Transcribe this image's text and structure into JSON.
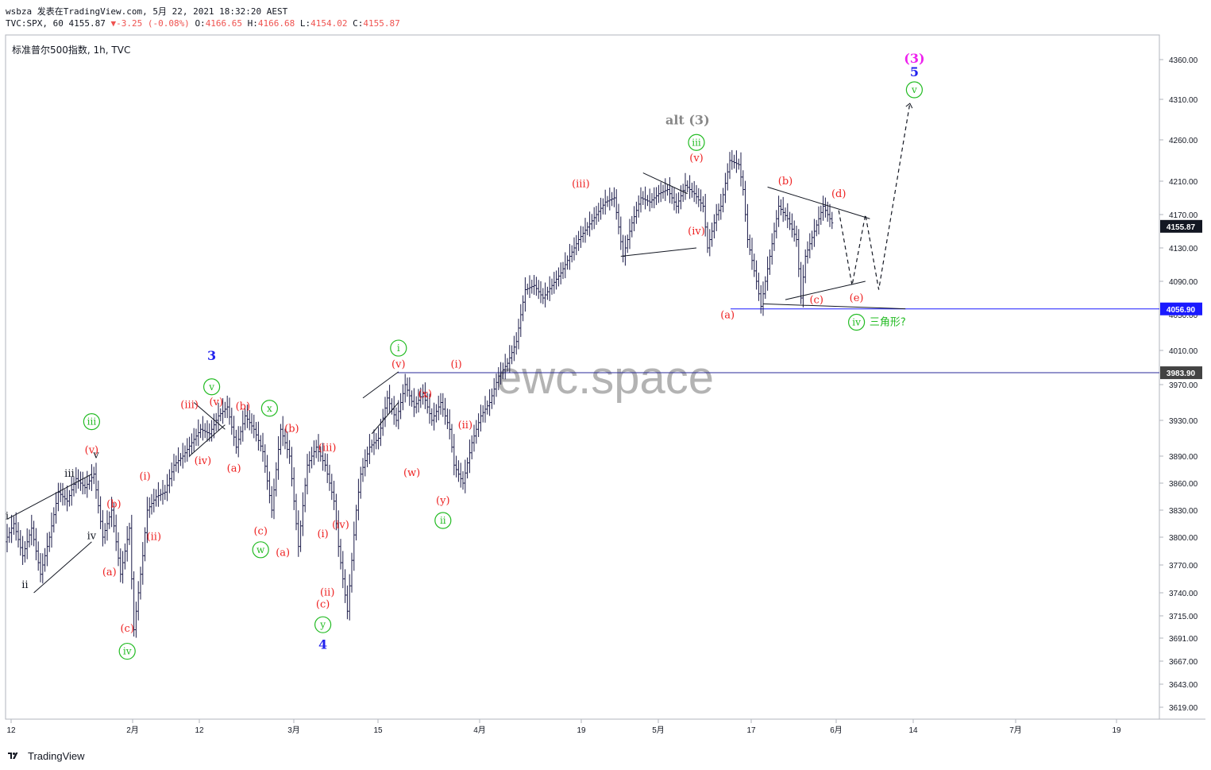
{
  "header": {
    "author": "wsbza",
    "published": "发表在TradingView.com, 5月 22, 2021 18:32:20 AEST",
    "symbol": "TVC:SPX, 60",
    "last": "4155.87",
    "change": "-3.25 (-0.08%)",
    "o_label": "O:",
    "o": "4166.65",
    "h_label": "H:",
    "h": "4166.68",
    "l_label": "L:",
    "l": "4154.02",
    "c_label": "C:",
    "c": "4155.87"
  },
  "legend": {
    "title": "标准普尔500指数, 1h, TVC"
  },
  "watermark": "ewc.space",
  "footer": {
    "brand": "TradingView"
  },
  "chart_data": {
    "type": "line",
    "ohlc_style": "bar",
    "y_axis": {
      "position": "right",
      "ylim": [
        3600,
        4375
      ],
      "ticks": [
        4360,
        4310,
        4260,
        4210,
        4170,
        4130,
        4090,
        4050,
        4010,
        3970,
        3930,
        3890,
        3860,
        3830,
        3800,
        3770,
        3740,
        3715,
        3691,
        3667,
        3643,
        3619
      ],
      "tick_labels": [
        "4360.00",
        "4310.00",
        "4260.00",
        "4210.00",
        "4170.00",
        "4130.00",
        "4090.00",
        "4050.00",
        "4010.00",
        "3970.00",
        "3930.00",
        "3890.00",
        "3860.00",
        "3830.00",
        "3800.00",
        "3770.00",
        "3740.00",
        "3715.00",
        "3691.00",
        "3667.00",
        "3643.00",
        "3619.00"
      ]
    },
    "x_axis": {
      "ticks": [
        "12",
        "2月",
        "12",
        "3月",
        "15",
        "4月",
        "19",
        "5月",
        "17",
        "6月",
        "14",
        "7月",
        "19"
      ]
    },
    "price_tags": [
      {
        "value": 4155.87,
        "label": "4155.87",
        "color": "#131722"
      },
      {
        "value": 4056.9,
        "label": "4056.90",
        "color": "#1a1aff"
      },
      {
        "value": 3983.9,
        "label": "3983.90",
        "color": "#434343"
      }
    ],
    "horizontal_lines": [
      {
        "value": 4056.9,
        "color": "#1a1aff"
      },
      {
        "value": 3983.9,
        "color": "#2a2a9a"
      }
    ],
    "price_path": [
      [
        0,
        3795
      ],
      [
        2,
        3815
      ],
      [
        4,
        3780
      ],
      [
        6,
        3810
      ],
      [
        8,
        3760
      ],
      [
        10,
        3800
      ],
      [
        12,
        3850
      ],
      [
        14,
        3840
      ],
      [
        16,
        3865
      ],
      [
        18,
        3855
      ],
      [
        20,
        3870
      ],
      [
        22,
        3800
      ],
      [
        24,
        3830
      ],
      [
        26,
        3760
      ],
      [
        28,
        3810
      ],
      [
        29,
        3700
      ],
      [
        31,
        3780
      ],
      [
        32,
        3830
      ],
      [
        34,
        3845
      ],
      [
        36,
        3850
      ],
      [
        38,
        3880
      ],
      [
        40,
        3890
      ],
      [
        42,
        3905
      ],
      [
        44,
        3920
      ],
      [
        46,
        3915
      ],
      [
        48,
        3935
      ],
      [
        50,
        3945
      ],
      [
        52,
        3900
      ],
      [
        54,
        3935
      ],
      [
        56,
        3920
      ],
      [
        58,
        3895
      ],
      [
        60,
        3830
      ],
      [
        62,
        3920
      ],
      [
        64,
        3890
      ],
      [
        66,
        3790
      ],
      [
        68,
        3880
      ],
      [
        70,
        3900
      ],
      [
        72,
        3880
      ],
      [
        74,
        3840
      ],
      [
        75,
        3790
      ],
      [
        77,
        3720
      ],
      [
        79,
        3830
      ],
      [
        80,
        3870
      ],
      [
        82,
        3900
      ],
      [
        84,
        3910
      ],
      [
        86,
        3955
      ],
      [
        88,
        3930
      ],
      [
        90,
        3970
      ],
      [
        92,
        3945
      ],
      [
        94,
        3960
      ],
      [
        96,
        3930
      ],
      [
        98,
        3950
      ],
      [
        100,
        3920
      ],
      [
        101,
        3880
      ],
      [
        103,
        3860
      ],
      [
        105,
        3905
      ],
      [
        107,
        3935
      ],
      [
        109,
        3950
      ],
      [
        111,
        3980
      ],
      [
        113,
        3995
      ],
      [
        115,
        4020
      ],
      [
        117,
        4080
      ],
      [
        119,
        4085
      ],
      [
        121,
        4070
      ],
      [
        123,
        4085
      ],
      [
        125,
        4100
      ],
      [
        127,
        4120
      ],
      [
        129,
        4140
      ],
      [
        131,
        4155
      ],
      [
        133,
        4170
      ],
      [
        135,
        4185
      ],
      [
        137,
        4190
      ],
      [
        139,
        4120
      ],
      [
        141,
        4160
      ],
      [
        143,
        4190
      ],
      [
        145,
        4185
      ],
      [
        147,
        4195
      ],
      [
        149,
        4200
      ],
      [
        151,
        4180
      ],
      [
        153,
        4205
      ],
      [
        155,
        4195
      ],
      [
        157,
        4180
      ],
      [
        158,
        4130
      ],
      [
        160,
        4170
      ],
      [
        161,
        4180
      ],
      [
        163,
        4235
      ],
      [
        165,
        4230
      ],
      [
        166,
        4200
      ],
      [
        167,
        4140
      ],
      [
        169,
        4090
      ],
      [
        170,
        4060
      ],
      [
        172,
        4120
      ],
      [
        174,
        4180
      ],
      [
        176,
        4165
      ],
      [
        178,
        4140
      ],
      [
        179,
        4070
      ],
      [
        180,
        4120
      ],
      [
        182,
        4150
      ],
      [
        184,
        4180
      ],
      [
        186,
        4160
      ]
    ],
    "projection_path": [
      [
        187,
        4175
      ],
      [
        190,
        4085
      ],
      [
        193,
        4170
      ],
      [
        196,
        4080
      ],
      [
        203,
        4305
      ]
    ],
    "wave_labels": [
      {
        "t": 0,
        "v": 3820,
        "text": "i",
        "color": "#131722"
      },
      {
        "t": 4,
        "v": 3745,
        "text": "ii",
        "color": "#131722"
      },
      {
        "t": 14,
        "v": 3867,
        "text": "iii",
        "color": "#131722"
      },
      {
        "t": 19,
        "v": 3798,
        "text": "iv",
        "color": "#131722"
      },
      {
        "t": 20,
        "v": 3888,
        "text": "v",
        "color": "#131722"
      },
      {
        "t": 19,
        "v": 3925,
        "text": "iii",
        "color": "#22bb22",
        "circled": true
      },
      {
        "t": 19,
        "v": 3893,
        "text": "(v)",
        "color": "#ee2222"
      },
      {
        "t": 24,
        "v": 3833,
        "text": "(b)",
        "color": "#ee2222"
      },
      {
        "t": 23,
        "v": 3759,
        "text": "(a)",
        "color": "#ee2222"
      },
      {
        "t": 27,
        "v": 3698,
        "text": "(c)",
        "color": "#ee2222"
      },
      {
        "t": 27,
        "v": 3674,
        "text": "iv",
        "color": "#22bb22",
        "circled": true
      },
      {
        "t": 31,
        "v": 3864,
        "text": "(i)",
        "color": "#ee2222"
      },
      {
        "t": 33,
        "v": 3797,
        "text": "(ii)",
        "color": "#ee2222"
      },
      {
        "t": 41,
        "v": 3944,
        "text": "(iii)",
        "color": "#ee2222"
      },
      {
        "t": 44,
        "v": 3881,
        "text": "(iv)",
        "color": "#ee2222"
      },
      {
        "t": 46,
        "v": 3999,
        "text": "3",
        "color": "#2222ee"
      },
      {
        "t": 46,
        "v": 3964,
        "text": "v",
        "color": "#22bb22",
        "circled": true
      },
      {
        "t": 47,
        "v": 3947,
        "text": "(v)",
        "color": "#ee2222"
      },
      {
        "t": 53,
        "v": 3942,
        "text": "(b)",
        "color": "#ee2222"
      },
      {
        "t": 51,
        "v": 3873,
        "text": "(a)",
        "color": "#ee2222"
      },
      {
        "t": 59,
        "v": 3940,
        "text": "x",
        "color": "#22bb22",
        "circled": true
      },
      {
        "t": 57,
        "v": 3803,
        "text": "(c)",
        "color": "#ee2222"
      },
      {
        "t": 57,
        "v": 3783,
        "text": "w",
        "color": "#22bb22",
        "circled": true
      },
      {
        "t": 64,
        "v": 3917,
        "text": "(b)",
        "color": "#ee2222"
      },
      {
        "t": 62,
        "v": 3780,
        "text": "(a)",
        "color": "#ee2222"
      },
      {
        "t": 72,
        "v": 3896,
        "text": "(iii)",
        "color": "#ee2222"
      },
      {
        "t": 75,
        "v": 3810,
        "text": "(iv)",
        "color": "#ee2222"
      },
      {
        "t": 71,
        "v": 3800,
        "text": "(i)",
        "color": "#ee2222"
      },
      {
        "t": 72,
        "v": 3737,
        "text": "(ii)",
        "color": "#ee2222"
      },
      {
        "t": 71,
        "v": 3724,
        "text": "(c)",
        "color": "#ee2222"
      },
      {
        "t": 71,
        "v": 3702,
        "text": "y",
        "color": "#22bb22",
        "circled": true
      },
      {
        "t": 71,
        "v": 3680,
        "text": "4",
        "color": "#2222ee"
      },
      {
        "t": 88,
        "v": 4009,
        "text": "i",
        "color": "#22bb22",
        "circled": true
      },
      {
        "t": 88,
        "v": 3990,
        "text": "(v)",
        "color": "#ee2222"
      },
      {
        "t": 94,
        "v": 3956,
        "text": "(x)",
        "color": "#ee2222"
      },
      {
        "t": 91,
        "v": 3868,
        "text": "(w)",
        "color": "#ee2222"
      },
      {
        "t": 101,
        "v": 3990,
        "text": "(i)",
        "color": "#ee2222"
      },
      {
        "t": 103,
        "v": 3921,
        "text": "(ii)",
        "color": "#ee2222"
      },
      {
        "t": 98,
        "v": 3837,
        "text": "(y)",
        "color": "#ee2222"
      },
      {
        "t": 98,
        "v": 3815,
        "text": "ii",
        "color": "#22bb22",
        "circled": true
      },
      {
        "t": 129,
        "v": 4203,
        "text": "(iii)",
        "color": "#ee2222"
      },
      {
        "t": 155,
        "v": 4146,
        "text": "(iv)",
        "color": "#ee2222"
      },
      {
        "t": 153,
        "v": 4279,
        "text": "alt (3)",
        "color": "#888888"
      },
      {
        "t": 155,
        "v": 4253,
        "text": "iii",
        "color": "#22bb22",
        "circled": true
      },
      {
        "t": 155,
        "v": 4234,
        "text": "(v)",
        "color": "#ee2222"
      },
      {
        "t": 162,
        "v": 4046,
        "text": "(a)",
        "color": "#ee2222"
      },
      {
        "t": 175,
        "v": 4206,
        "text": "(b)",
        "color": "#ee2222"
      },
      {
        "t": 187,
        "v": 4191,
        "text": "(d)",
        "color": "#ee2222"
      },
      {
        "t": 182,
        "v": 4064,
        "text": "(c)",
        "color": "#ee2222"
      },
      {
        "t": 191,
        "v": 4066,
        "text": "(e)",
        "color": "#ee2222"
      },
      {
        "t": 191,
        "v": 4038,
        "text": "iv",
        "color": "#22bb22",
        "circled": true
      },
      {
        "t": 198,
        "v": 4038,
        "text": "三角形?",
        "color": "#22bb22"
      },
      {
        "t": 204,
        "v": 4356,
        "text": "(3)",
        "color": "#ee22ee"
      },
      {
        "t": 204,
        "v": 4339,
        "text": "5",
        "color": "#2222ee"
      },
      {
        "t": 204,
        "v": 4318,
        "text": "v",
        "color": "#22bb22",
        "circled": true
      }
    ]
  }
}
